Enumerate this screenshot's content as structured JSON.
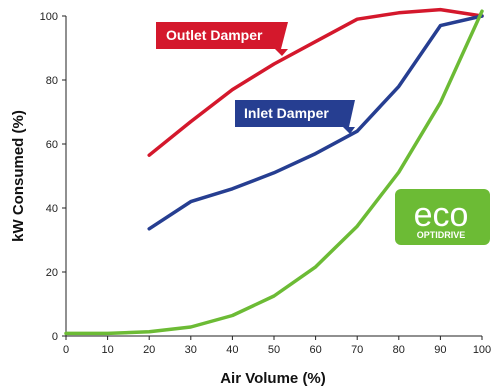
{
  "chart_data": {
    "type": "line",
    "title": "",
    "xlabel": "Air Volume (%)",
    "ylabel": "kW Consumed (%)",
    "xlim": [
      0,
      100
    ],
    "ylim": [
      0,
      100
    ],
    "x_ticks": [
      "0",
      "10",
      "20",
      "30",
      "40",
      "50",
      "60",
      "70",
      "80",
      "90",
      "100"
    ],
    "y_ticks": [
      "0",
      "20",
      "40",
      "60",
      "80",
      "100"
    ],
    "grid": false,
    "series": [
      {
        "name": "Outlet Damper",
        "color": "#d4182c",
        "x": [
          20,
          30,
          40,
          50,
          60,
          70,
          80,
          90,
          100
        ],
        "y": [
          56.5,
          67,
          77,
          85,
          92,
          99,
          101,
          102,
          100
        ]
      },
      {
        "name": "Inlet Damper",
        "color": "#263e91",
        "x": [
          20,
          30,
          40,
          50,
          60,
          70,
          80,
          90,
          100
        ],
        "y": [
          33.5,
          42,
          46,
          51,
          57,
          64,
          78,
          97,
          100
        ]
      },
      {
        "name": "",
        "color": "#6cbb35",
        "x": [
          0,
          10,
          20,
          30,
          40,
          50,
          60,
          70,
          80,
          90,
          100
        ],
        "y": [
          0.8,
          0.8,
          1.3,
          2.8,
          6.4,
          12.5,
          21.6,
          34.3,
          51.2,
          72.9,
          101.5
        ]
      }
    ]
  },
  "logo": {
    "icon": "eco-optidrive-logo",
    "word": "eco",
    "sub": "OPTIDRIVE"
  }
}
